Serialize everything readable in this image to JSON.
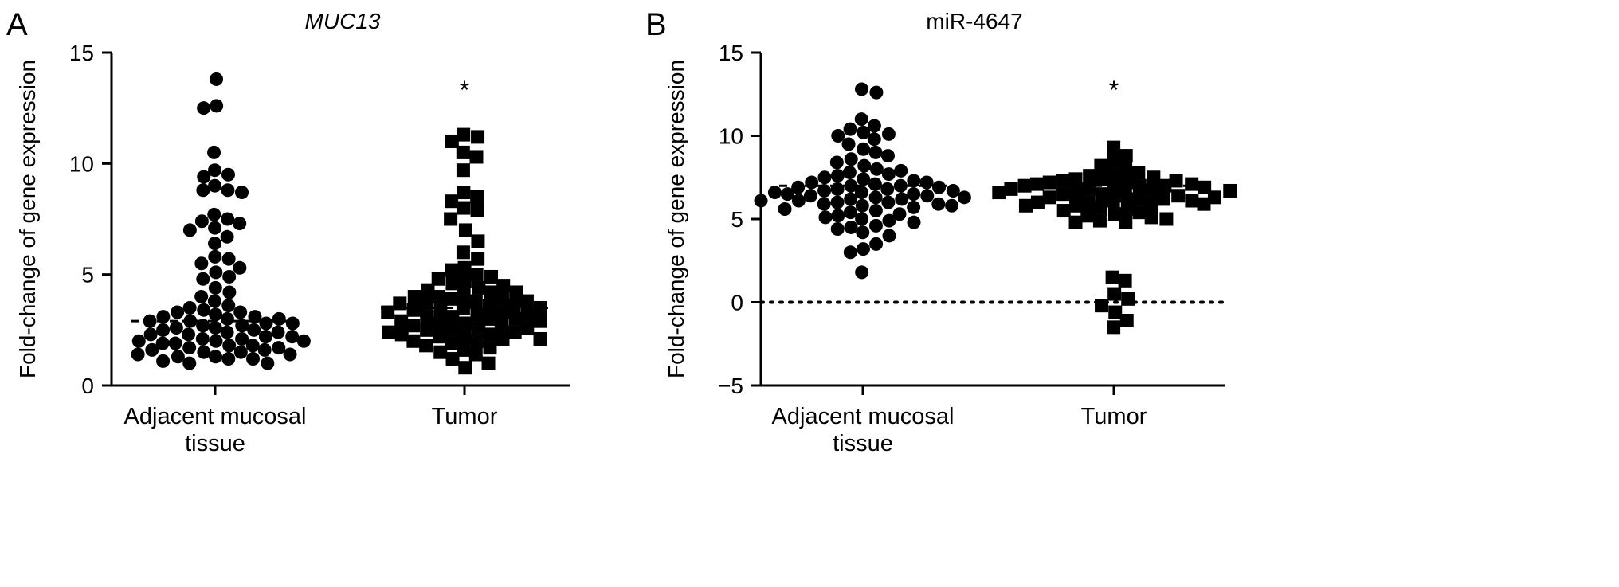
{
  "chart_data": [
    {
      "panel": "A",
      "type": "scatter",
      "title": "MUC13",
      "title_italic": true,
      "ylabel": "Fold-change of gene expression",
      "xlabel": "",
      "ylim": [
        0,
        15
      ],
      "yticks": [
        0,
        5,
        10,
        15
      ],
      "grid": false,
      "categories": [
        "Adjacent mucosal tissue",
        "Tumor"
      ],
      "category_label_lines": [
        [
          "Adjacent mucosal",
          "tissue"
        ],
        [
          "Tumor"
        ]
      ],
      "series": [
        {
          "category": "Adjacent mucosal tissue",
          "marker": "circle",
          "mean_line": 2.9,
          "values": [
            13.8,
            12.6,
            12.5,
            10.5,
            9.7,
            9.5,
            9.4,
            9.0,
            8.8,
            8.8,
            8.7,
            7.7,
            7.5,
            7.4,
            7.3,
            7.1,
            7.0,
            6.7,
            6.4,
            5.8,
            5.7,
            5.5,
            5.3,
            5.1,
            4.9,
            4.8,
            4.4,
            4.2,
            4.0,
            3.8,
            3.6,
            3.5,
            3.4,
            3.3,
            3.3,
            3.2,
            3.1,
            3.1,
            3.0,
            3.0,
            2.9,
            2.9,
            2.8,
            2.8,
            2.7,
            2.7,
            2.6,
            2.6,
            2.5,
            2.5,
            2.4,
            2.4,
            2.3,
            2.3,
            2.2,
            2.2,
            2.1,
            2.1,
            2.0,
            2.0,
            2.0,
            1.9,
            1.9,
            1.8,
            1.8,
            1.7,
            1.7,
            1.6,
            1.6,
            1.5,
            1.5,
            1.4,
            1.4,
            1.3,
            1.3,
            1.2,
            1.2,
            1.1,
            1.0,
            1.0
          ]
        },
        {
          "category": "Tumor",
          "marker": "square",
          "mean_line": 3.5,
          "annotation": "*",
          "values": [
            11.3,
            11.2,
            11.0,
            10.5,
            10.3,
            9.7,
            8.7,
            8.5,
            8.3,
            8.0,
            7.9,
            7.5,
            7.0,
            6.5,
            6.0,
            5.7,
            5.3,
            5.2,
            5.0,
            4.9,
            4.8,
            4.7,
            4.6,
            4.5,
            4.4,
            4.3,
            4.2,
            4.2,
            4.1,
            4.0,
            4.0,
            3.9,
            3.9,
            3.8,
            3.8,
            3.7,
            3.7,
            3.6,
            3.6,
            3.5,
            3.5,
            3.4,
            3.4,
            3.3,
            3.3,
            3.2,
            3.2,
            3.1,
            3.1,
            3.0,
            3.0,
            2.9,
            2.9,
            2.8,
            2.8,
            2.7,
            2.7,
            2.6,
            2.6,
            2.5,
            2.5,
            2.4,
            2.4,
            2.3,
            2.3,
            2.2,
            2.2,
            2.1,
            2.1,
            2.0,
            2.0,
            1.9,
            1.8,
            1.7,
            1.6,
            1.5,
            1.4,
            1.2,
            1.0,
            0.8
          ]
        }
      ]
    },
    {
      "panel": "B",
      "type": "scatter",
      "title": "miR-4647",
      "title_italic": false,
      "ylabel": "Fold-change of gene expression",
      "xlabel": "",
      "ylim": [
        -5,
        15
      ],
      "yticks": [
        -5,
        0,
        5,
        10,
        15
      ],
      "grid": false,
      "reference_line": {
        "y": 0,
        "style": "dotted"
      },
      "categories": [
        "Adjacent mucosal tissue",
        "Tumor"
      ],
      "category_label_lines": [
        [
          "Adjacent mucosal",
          "tissue"
        ],
        [
          "Tumor"
        ]
      ],
      "series": [
        {
          "category": "Adjacent mucosal tissue",
          "marker": "circle",
          "mean_line": 7.0,
          "values": [
            12.8,
            12.6,
            11.0,
            10.6,
            10.4,
            10.2,
            10.1,
            10.0,
            9.8,
            9.5,
            9.2,
            9.0,
            8.8,
            8.6,
            8.4,
            8.2,
            8.0,
            7.9,
            7.8,
            7.7,
            7.6,
            7.5,
            7.4,
            7.3,
            7.2,
            7.2,
            7.1,
            7.0,
            7.0,
            6.9,
            6.9,
            6.8,
            6.8,
            6.7,
            6.7,
            6.6,
            6.6,
            6.5,
            6.5,
            6.4,
            6.4,
            6.3,
            6.3,
            6.2,
            6.2,
            6.1,
            6.1,
            6.0,
            6.0,
            5.9,
            5.9,
            5.8,
            5.8,
            5.7,
            5.6,
            5.5,
            5.4,
            5.3,
            5.2,
            5.1,
            5.0,
            4.9,
            4.8,
            4.6,
            4.5,
            4.4,
            4.2,
            4.0,
            3.5,
            3.2,
            3.0,
            1.8
          ]
        },
        {
          "category": "Tumor",
          "marker": "square",
          "mean_line": 7.0,
          "annotation": "*",
          "values": [
            9.3,
            8.8,
            8.5,
            8.2,
            8.0,
            7.8,
            7.7,
            7.6,
            7.5,
            7.4,
            7.4,
            7.3,
            7.3,
            7.2,
            7.2,
            7.1,
            7.1,
            7.0,
            7.0,
            7.0,
            6.9,
            6.9,
            6.8,
            6.8,
            6.7,
            6.7,
            6.6,
            6.6,
            6.5,
            6.5,
            6.4,
            6.4,
            6.3,
            6.3,
            6.2,
            6.2,
            6.1,
            6.1,
            6.0,
            6.0,
            5.9,
            5.9,
            5.8,
            5.8,
            5.7,
            5.6,
            5.5,
            5.4,
            5.3,
            5.2,
            5.1,
            5.0,
            4.9,
            4.8,
            4.8,
            1.5,
            1.3,
            0.5,
            0.2,
            -0.2,
            -0.6,
            -1.1,
            -1.5
          ]
        }
      ]
    }
  ]
}
